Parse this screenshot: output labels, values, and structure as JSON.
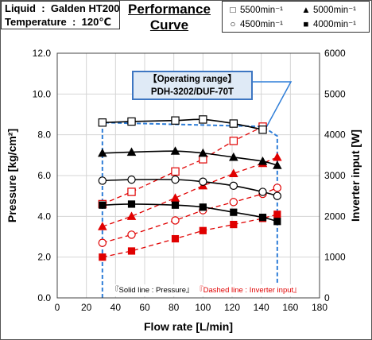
{
  "info": {
    "liquid_label": "Liquid",
    "liquid_value": "Galden HT200",
    "temperature_label": "Temperature",
    "temperature_value": "120℃"
  },
  "title_line1": "Performance",
  "title_line2": "Curve",
  "legend": [
    {
      "symbol": "□",
      "text": "5500min⁻¹"
    },
    {
      "symbol": "▲",
      "text": "5000min⁻¹"
    },
    {
      "symbol": "○",
      "text": "4500min⁻¹"
    },
    {
      "symbol": "■",
      "text": "4000min⁻¹"
    }
  ],
  "operating_range": {
    "label": "【Operating range】",
    "model": "PDH-3202/DUF-70T",
    "flow_min": 31,
    "flow_max": 151,
    "color": "#2f7ed8"
  },
  "note": {
    "solid": "『Solid line : Pressure』",
    "dashed": "『Dashed line : Inverter input』"
  },
  "colors": {
    "pressure": "#000000",
    "inverter": "#e00000",
    "range": "#2f7ed8"
  },
  "chart_data": {
    "type": "line",
    "xlabel": "Flow rate [L/min]",
    "ylabel_left": "Pressure [kg/cm²]",
    "ylabel_right": "Inverter input [W]",
    "xlim": [
      0,
      180
    ],
    "ylim_left": [
      0,
      12
    ],
    "ylim_right": [
      0,
      6000
    ],
    "x_ticks": [
      "0",
      "20",
      "40",
      "60",
      "80",
      "100",
      "120",
      "140",
      "160",
      "180"
    ],
    "y_ticks_left": [
      "0.0",
      "2.0",
      "4.0",
      "6.0",
      "8.0",
      "10.0",
      "12.0"
    ],
    "y_ticks_right": [
      "0",
      "1000",
      "2000",
      "3000",
      "4000",
      "5000",
      "6000"
    ],
    "grid": true,
    "pressure_series": [
      {
        "name": "5500min⁻¹",
        "marker": "square-open",
        "x": [
          31,
          51,
          81,
          100,
          121,
          141
        ],
        "y": [
          8.6,
          8.65,
          8.7,
          8.75,
          8.55,
          8.25
        ]
      },
      {
        "name": "5000min⁻¹",
        "marker": "triangle",
        "x": [
          31,
          51,
          81,
          100,
          121,
          141,
          151
        ],
        "y": [
          7.1,
          7.15,
          7.2,
          7.1,
          6.9,
          6.7,
          6.5
        ]
      },
      {
        "name": "4500min⁻¹",
        "marker": "circle-open",
        "x": [
          31,
          51,
          81,
          100,
          121,
          141,
          151
        ],
        "y": [
          5.75,
          5.8,
          5.8,
          5.7,
          5.5,
          5.2,
          5.0
        ]
      },
      {
        "name": "4000min⁻¹",
        "marker": "square",
        "x": [
          31,
          51,
          81,
          100,
          121,
          141,
          151
        ],
        "y": [
          4.55,
          4.6,
          4.55,
          4.45,
          4.2,
          3.95,
          3.75
        ]
      }
    ],
    "inverter_series": [
      {
        "name": "5500min⁻¹",
        "marker": "square-open",
        "x": [
          31,
          51,
          81,
          100,
          121,
          141
        ],
        "y": [
          2300,
          2600,
          3100,
          3400,
          3850,
          4200
        ]
      },
      {
        "name": "5000min⁻¹",
        "marker": "triangle",
        "x": [
          31,
          51,
          81,
          100,
          121,
          141,
          151
        ],
        "y": [
          1750,
          2000,
          2450,
          2750,
          3050,
          3300,
          3450
        ]
      },
      {
        "name": "4500min⁻¹",
        "marker": "circle-open",
        "x": [
          31,
          51,
          81,
          100,
          121,
          141,
          151
        ],
        "y": [
          1350,
          1550,
          1900,
          2150,
          2350,
          2550,
          2700
        ]
      },
      {
        "name": "4000min⁻¹",
        "marker": "square",
        "x": [
          31,
          51,
          81,
          100,
          121,
          141,
          151
        ],
        "y": [
          1000,
          1150,
          1450,
          1650,
          1800,
          1950,
          2050
        ]
      }
    ]
  }
}
